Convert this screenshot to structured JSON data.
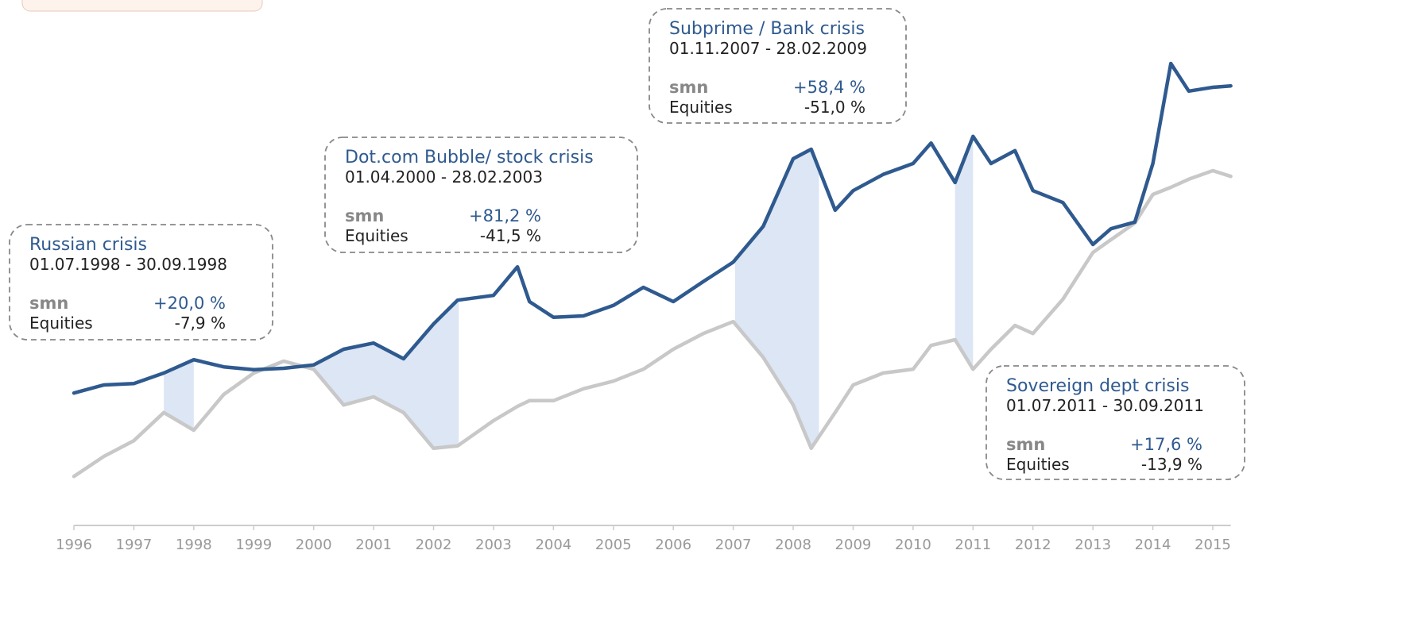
{
  "chart_data": {
    "type": "line",
    "x": [
      1996.0,
      1996.5,
      1997.0,
      1997.5,
      1998.0,
      1998.5,
      1999.0,
      1999.5,
      2000.0,
      2000.5,
      2001.0,
      2001.5,
      2002.0,
      2002.4,
      2003.0,
      2003.4,
      2003.6,
      2004.0,
      2004.5,
      2005.0,
      2005.5,
      2006.0,
      2006.5,
      2007.0,
      2007.5,
      2008.0,
      2008.3,
      2008.7,
      2009.0,
      2009.5,
      2010.0,
      2010.3,
      2010.7,
      2011.0,
      2011.3,
      2011.7,
      2012.0,
      2012.5,
      2013.0,
      2013.3,
      2013.7,
      2014.0,
      2014.3,
      2014.6,
      2015.0,
      2015.3
    ],
    "series": [
      {
        "name": "smn",
        "color": "#2f5a8f",
        "values": [
          27.8,
          29.5,
          29.8,
          32,
          34.8,
          33.3,
          32.7,
          33,
          33.7,
          37,
          38.3,
          35,
          42.3,
          47.3,
          48.3,
          54.3,
          47,
          43.7,
          44,
          46.2,
          50,
          47,
          51.2,
          55.3,
          62.8,
          77,
          79,
          66.2,
          70.3,
          73.7,
          76,
          80.3,
          72,
          81.7,
          76,
          78.7,
          70.3,
          67.8,
          59,
          62.3,
          63.7,
          76,
          97,
          91.2,
          92,
          92.3
        ]
      },
      {
        "name": "Equities",
        "color": "#c8c8c8",
        "values": [
          10.3,
          14.5,
          17.8,
          23.7,
          20,
          27.5,
          32,
          34.5,
          32.8,
          25.3,
          27,
          23.7,
          16.2,
          16.7,
          22,
          25,
          26.2,
          26.2,
          28.7,
          30.3,
          32.8,
          37,
          40.3,
          42.8,
          35.3,
          25.3,
          16.2,
          23.7,
          29.5,
          32,
          32.8,
          37.8,
          39,
          32.8,
          37,
          42,
          40.3,
          47.5,
          57.3,
          60,
          63.5,
          69.5,
          71,
          72.7,
          74.5,
          73.3
        ]
      }
    ],
    "xlim": [
      1996,
      2015.3
    ],
    "xticks": [
      1996,
      1997,
      1998,
      1999,
      2000,
      2001,
      2002,
      2003,
      2004,
      2005,
      2006,
      2007,
      2008,
      2009,
      2010,
      2011,
      2012,
      2013,
      2014,
      2015
    ],
    "ylim": [
      0,
      100
    ],
    "shades": [
      [
        1997.5,
        1998.0
      ],
      [
        2000.0,
        2002.42
      ],
      [
        2007.03,
        2008.43
      ],
      [
        2010.7,
        2011.0
      ]
    ],
    "annotations": [
      {
        "title": "Russian crisis",
        "period": "01.07.1998 - 30.09.1998",
        "values": [
          "+20,0 %",
          "-7,9 %"
        ]
      },
      {
        "title": "Dot.com Bubble/ stock crisis",
        "period": "01.04.2000 - 28.02.2003",
        "values": [
          "+81,2 %",
          "-41,5 %"
        ]
      },
      {
        "title": "Subprime / Bank crisis",
        "period": "01.11.2007 - 28.02.2009",
        "values": [
          "+58,4 %",
          "-51,0 %"
        ]
      },
      {
        "title": "Sovereign dept crisis",
        "period": "01.07.2011 - 30.09.2011",
        "values": [
          "+17,6 %",
          "-13,9 %"
        ]
      }
    ]
  }
}
